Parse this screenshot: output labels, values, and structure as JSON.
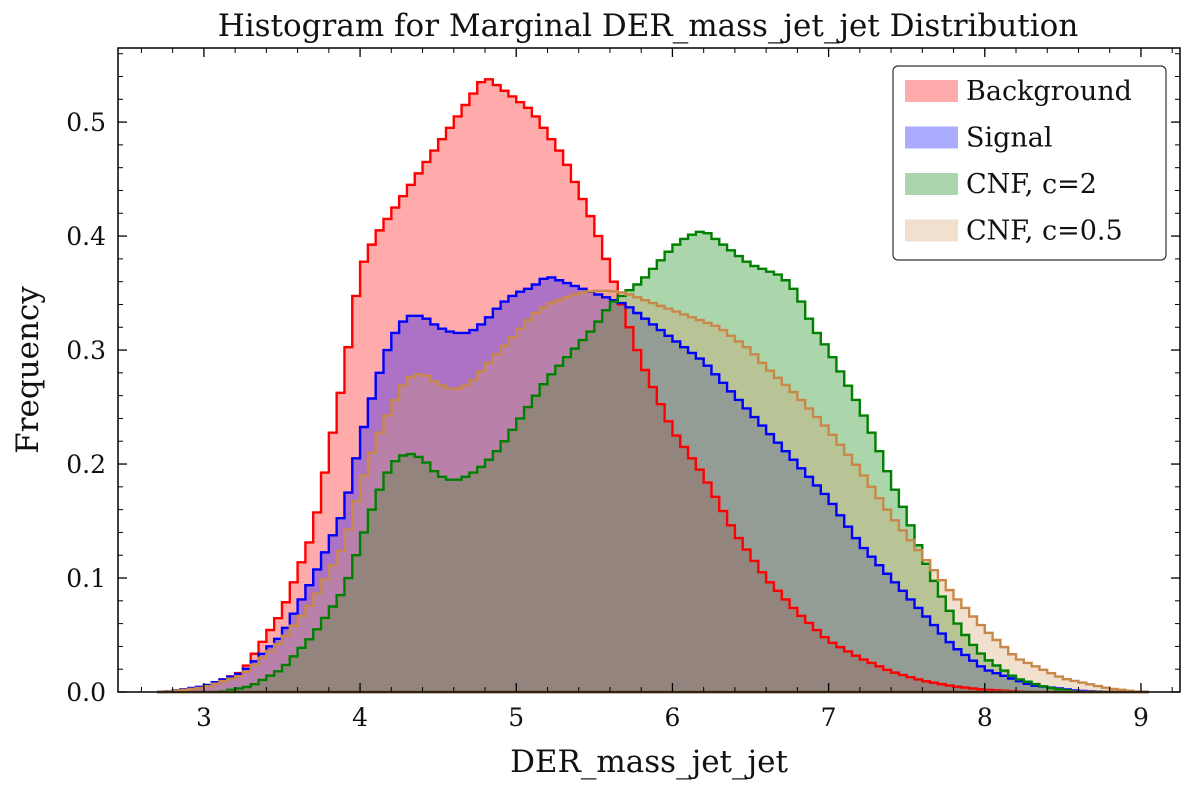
{
  "chart_data": {
    "type": "histogram",
    "title": "Histogram for Marginal DER_mass_jet_jet Distribution",
    "xlabel": "DER_mass_jet_jet",
    "ylabel": "Frequency",
    "xlim": [
      2.45,
      9.25
    ],
    "ylim": [
      0,
      0.565
    ],
    "xticks": [
      3,
      4,
      5,
      6,
      7,
      8,
      9
    ],
    "yticks": [
      0.0,
      0.1,
      0.2,
      0.3,
      0.4,
      0.5
    ],
    "ytick_labels": [
      "0.0",
      "0.1",
      "0.2",
      "0.3",
      "0.4",
      "0.5"
    ],
    "grid": false,
    "legend_position": "top-right",
    "series": [
      {
        "name": "Background",
        "color": "#ff0000",
        "points": [
          [
            2.75,
            0
          ],
          [
            3.0,
            0.004
          ],
          [
            3.25,
            0.018
          ],
          [
            3.5,
            0.07
          ],
          [
            3.7,
            0.14
          ],
          [
            3.9,
            0.28
          ],
          [
            4.0,
            0.37
          ],
          [
            4.1,
            0.4
          ],
          [
            4.2,
            0.42
          ],
          [
            4.3,
            0.44
          ],
          [
            4.4,
            0.46
          ],
          [
            4.5,
            0.48
          ],
          [
            4.6,
            0.5
          ],
          [
            4.7,
            0.52
          ],
          [
            4.8,
            0.54
          ],
          [
            4.9,
            0.53
          ],
          [
            5.0,
            0.52
          ],
          [
            5.1,
            0.51
          ],
          [
            5.2,
            0.49
          ],
          [
            5.3,
            0.47
          ],
          [
            5.4,
            0.44
          ],
          [
            5.5,
            0.41
          ],
          [
            5.6,
            0.37
          ],
          [
            5.7,
            0.33
          ],
          [
            5.8,
            0.29
          ],
          [
            5.9,
            0.26
          ],
          [
            6.0,
            0.23
          ],
          [
            6.2,
            0.19
          ],
          [
            6.4,
            0.14
          ],
          [
            6.6,
            0.1
          ],
          [
            6.8,
            0.07
          ],
          [
            7.0,
            0.045
          ],
          [
            7.2,
            0.03
          ],
          [
            7.4,
            0.018
          ],
          [
            7.6,
            0.01
          ],
          [
            7.8,
            0.005
          ],
          [
            8.0,
            0.002
          ],
          [
            8.3,
            0
          ]
        ]
      },
      {
        "name": "Signal",
        "color": "#0000ff",
        "points": [
          [
            2.75,
            0
          ],
          [
            3.0,
            0.005
          ],
          [
            3.25,
            0.017
          ],
          [
            3.5,
            0.05
          ],
          [
            3.7,
            0.1
          ],
          [
            3.9,
            0.16
          ],
          [
            4.0,
            0.22
          ],
          [
            4.1,
            0.27
          ],
          [
            4.2,
            0.31
          ],
          [
            4.3,
            0.33
          ],
          [
            4.4,
            0.33
          ],
          [
            4.5,
            0.32
          ],
          [
            4.6,
            0.315
          ],
          [
            4.7,
            0.315
          ],
          [
            4.8,
            0.325
          ],
          [
            4.9,
            0.34
          ],
          [
            5.0,
            0.35
          ],
          [
            5.1,
            0.355
          ],
          [
            5.2,
            0.365
          ],
          [
            5.3,
            0.36
          ],
          [
            5.4,
            0.355
          ],
          [
            5.5,
            0.35
          ],
          [
            5.6,
            0.345
          ],
          [
            5.7,
            0.34
          ],
          [
            5.8,
            0.33
          ],
          [
            6.0,
            0.31
          ],
          [
            6.2,
            0.29
          ],
          [
            6.4,
            0.26
          ],
          [
            6.6,
            0.23
          ],
          [
            6.8,
            0.2
          ],
          [
            7.0,
            0.17
          ],
          [
            7.2,
            0.13
          ],
          [
            7.4,
            0.1
          ],
          [
            7.6,
            0.07
          ],
          [
            7.8,
            0.04
          ],
          [
            8.0,
            0.02
          ],
          [
            8.3,
            0.006
          ],
          [
            8.6,
            0.001
          ],
          [
            8.8,
            0
          ]
        ]
      },
      {
        "name": "CNF, c=2",
        "color": "#008000",
        "points": [
          [
            3.1,
            0
          ],
          [
            3.3,
            0.005
          ],
          [
            3.5,
            0.02
          ],
          [
            3.7,
            0.05
          ],
          [
            3.9,
            0.09
          ],
          [
            4.0,
            0.13
          ],
          [
            4.1,
            0.17
          ],
          [
            4.2,
            0.2
          ],
          [
            4.3,
            0.21
          ],
          [
            4.4,
            0.205
          ],
          [
            4.5,
            0.19
          ],
          [
            4.6,
            0.185
          ],
          [
            4.7,
            0.19
          ],
          [
            4.8,
            0.2
          ],
          [
            4.9,
            0.215
          ],
          [
            5.0,
            0.235
          ],
          [
            5.1,
            0.255
          ],
          [
            5.2,
            0.275
          ],
          [
            5.3,
            0.29
          ],
          [
            5.4,
            0.305
          ],
          [
            5.5,
            0.32
          ],
          [
            5.6,
            0.34
          ],
          [
            5.7,
            0.35
          ],
          [
            5.8,
            0.36
          ],
          [
            5.9,
            0.375
          ],
          [
            6.0,
            0.39
          ],
          [
            6.1,
            0.4
          ],
          [
            6.2,
            0.405
          ],
          [
            6.3,
            0.395
          ],
          [
            6.4,
            0.385
          ],
          [
            6.5,
            0.375
          ],
          [
            6.6,
            0.37
          ],
          [
            6.7,
            0.365
          ],
          [
            6.8,
            0.35
          ],
          [
            6.9,
            0.32
          ],
          [
            7.0,
            0.3
          ],
          [
            7.1,
            0.275
          ],
          [
            7.2,
            0.25
          ],
          [
            7.3,
            0.22
          ],
          [
            7.4,
            0.185
          ],
          [
            7.5,
            0.155
          ],
          [
            7.6,
            0.12
          ],
          [
            7.7,
            0.09
          ],
          [
            7.8,
            0.065
          ],
          [
            7.9,
            0.045
          ],
          [
            8.0,
            0.03
          ],
          [
            8.2,
            0.012
          ],
          [
            8.4,
            0.004
          ],
          [
            8.6,
            0
          ]
        ]
      },
      {
        "name": "CNF, c=0.5",
        "color": "#d9a06e",
        "edge_color": "#c8884a",
        "points": [
          [
            2.75,
            0
          ],
          [
            3.0,
            0.004
          ],
          [
            3.25,
            0.015
          ],
          [
            3.5,
            0.045
          ],
          [
            3.7,
            0.08
          ],
          [
            3.9,
            0.13
          ],
          [
            4.0,
            0.18
          ],
          [
            4.1,
            0.22
          ],
          [
            4.2,
            0.25
          ],
          [
            4.3,
            0.275
          ],
          [
            4.4,
            0.28
          ],
          [
            4.5,
            0.27
          ],
          [
            4.6,
            0.265
          ],
          [
            4.7,
            0.27
          ],
          [
            4.8,
            0.285
          ],
          [
            4.9,
            0.3
          ],
          [
            5.0,
            0.315
          ],
          [
            5.1,
            0.33
          ],
          [
            5.2,
            0.34
          ],
          [
            5.3,
            0.345
          ],
          [
            5.4,
            0.35
          ],
          [
            5.5,
            0.352
          ],
          [
            5.6,
            0.352
          ],
          [
            5.7,
            0.35
          ],
          [
            5.8,
            0.345
          ],
          [
            5.9,
            0.34
          ],
          [
            6.0,
            0.335
          ],
          [
            6.1,
            0.33
          ],
          [
            6.2,
            0.325
          ],
          [
            6.3,
            0.32
          ],
          [
            6.4,
            0.31
          ],
          [
            6.5,
            0.3
          ],
          [
            6.6,
            0.285
          ],
          [
            6.8,
            0.26
          ],
          [
            7.0,
            0.23
          ],
          [
            7.2,
            0.195
          ],
          [
            7.4,
            0.155
          ],
          [
            7.6,
            0.12
          ],
          [
            7.8,
            0.085
          ],
          [
            8.0,
            0.055
          ],
          [
            8.2,
            0.03
          ],
          [
            8.5,
            0.012
          ],
          [
            8.8,
            0.003
          ],
          [
            9.0,
            0
          ]
        ]
      }
    ]
  }
}
